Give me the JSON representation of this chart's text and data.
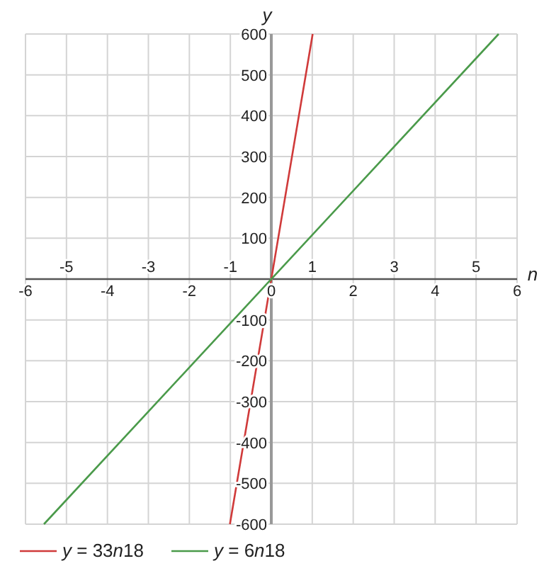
{
  "chart_data": {
    "type": "line",
    "xlabel": "n",
    "ylabel": "y",
    "xlim": [
      -6,
      6
    ],
    "xticks": [
      -6,
      -4,
      -2,
      0,
      2,
      4,
      6
    ],
    "x2lim": [
      -6,
      6
    ],
    "x2ticks": [
      -5,
      -3,
      -1,
      1,
      3,
      5
    ],
    "ylim": [
      -600,
      600
    ],
    "yticks": [
      -600,
      -500,
      -400,
      -300,
      -200,
      -100,
      100,
      200,
      300,
      400,
      500,
      600
    ],
    "grid": true,
    "legend": "bottom left",
    "marker": "none",
    "line_style": "solid",
    "series": [
      {
        "name": "y = 33n18",
        "color": "#d03a3a",
        "x": [
          -1.01,
          1.01
        ],
        "values": [
          -600,
          600
        ]
      },
      {
        "name": "y = 6n18",
        "color": "#4a9a4a",
        "x": [
          -5.55,
          5.55
        ],
        "values": [
          -600,
          600
        ]
      }
    ]
  }
}
